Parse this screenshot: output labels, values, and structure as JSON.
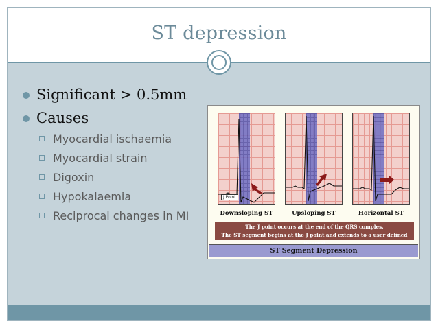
{
  "slide": {
    "title": "ST depression",
    "bullets": [
      {
        "text": "Significant > 0.5mm"
      },
      {
        "text": "Causes",
        "children": [
          "Myocardial ischaemia",
          "Myocardial strain",
          "Digoxin",
          "Hypokalaemia",
          "Reciprocal changes in MI"
        ]
      }
    ]
  },
  "figure": {
    "panels": [
      {
        "caption": "Downsloping ST"
      },
      {
        "caption": "Upsloping ST"
      },
      {
        "caption": "Horizontal ST"
      }
    ],
    "jpoint_label": "J Point",
    "note_line1": "The J point occurs at the end of the QRS comples.",
    "note_line2": "The ST segment begins at the J point and extends to a user defined interval",
    "footer": "ST Segment Depression"
  },
  "colors": {
    "accent": "#6f96a6",
    "background": "#c5d3da",
    "arrow": "#8b1a1a"
  }
}
